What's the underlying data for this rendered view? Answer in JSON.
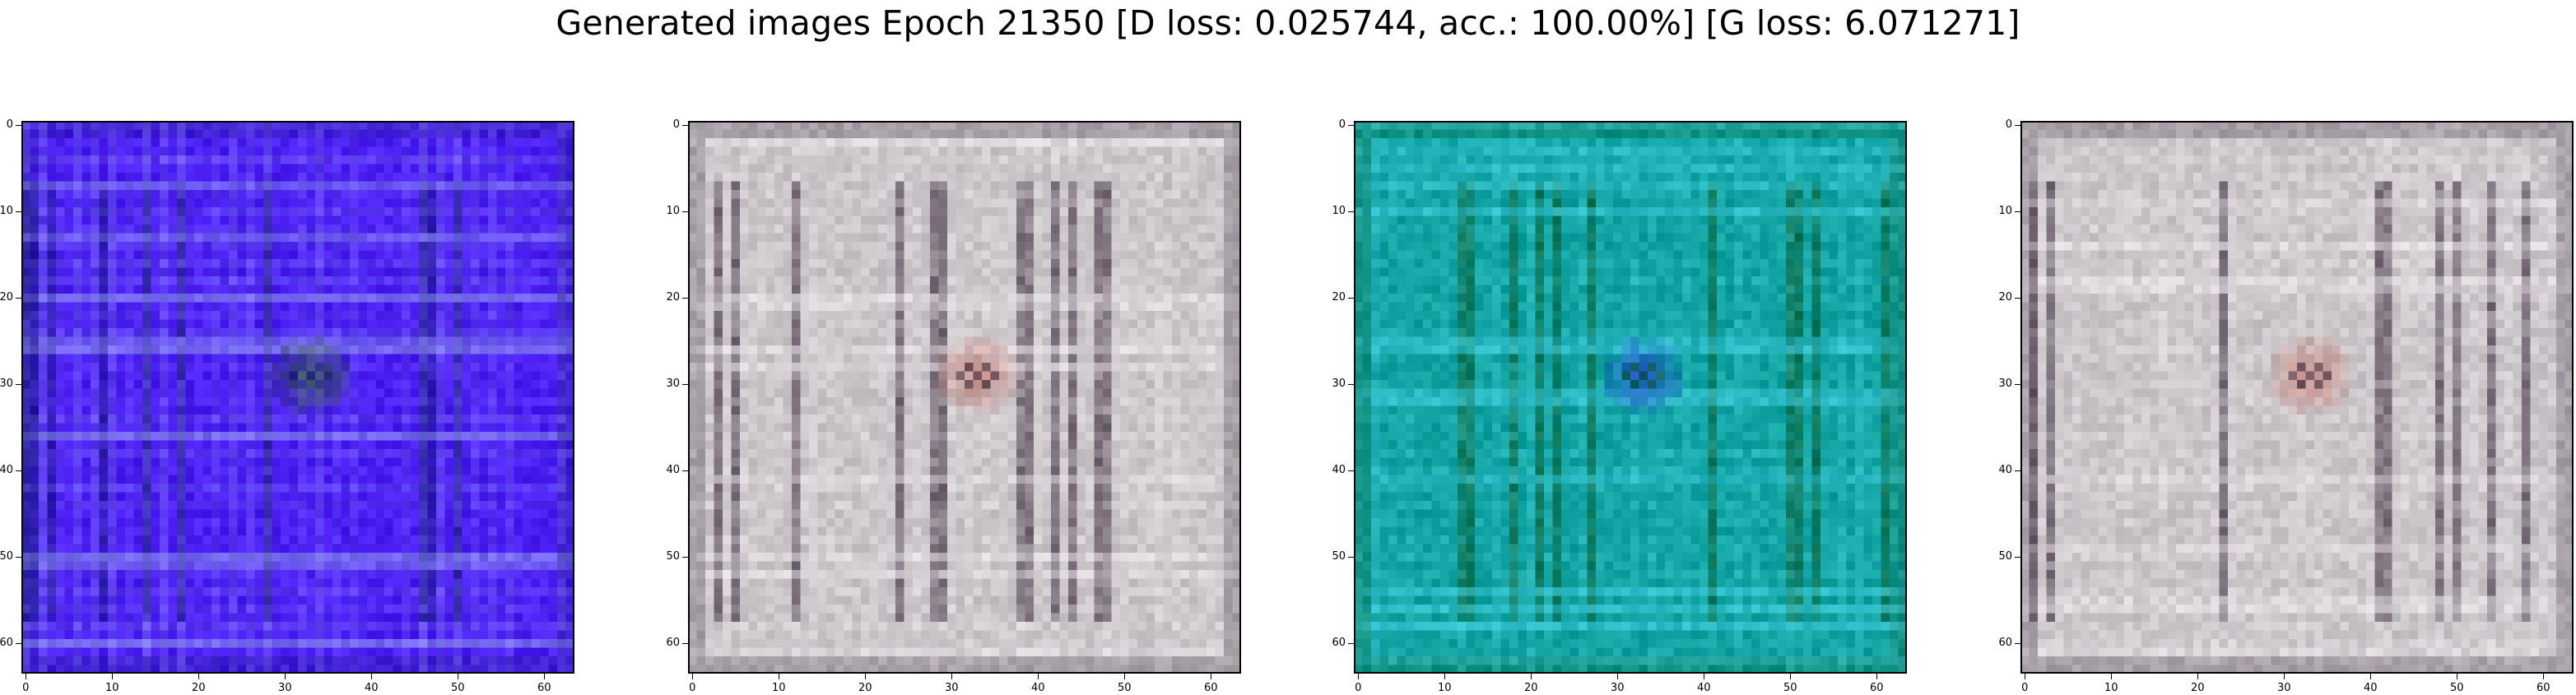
{
  "figure": {
    "title": "Generated images Epoch 21350 [D loss: 0.025744, acc.: 100.00%] [G loss: 6.071271]"
  },
  "axes_ticks": {
    "x": [
      "0",
      "10",
      "20",
      "30",
      "40",
      "50",
      "60"
    ],
    "y": [
      "0",
      "10",
      "20",
      "30",
      "40",
      "50",
      "60"
    ]
  },
  "images": [
    {
      "description_palette": "blue-violet",
      "base_color": "#4a1df2",
      "accent_color": "#8a8cf0",
      "dark_color": "#1a1a80",
      "hot_color": "#2c6a10"
    },
    {
      "description_palette": "pale-gray-pink",
      "base_color": "#c9c4c8",
      "accent_color": "#e6e0e4",
      "dark_color": "#3a2a3c",
      "hot_color": "#c46a5a"
    },
    {
      "description_palette": "teal-green",
      "base_color": "#0fa2a0",
      "accent_color": "#3cc9d8",
      "dark_color": "#0b5a2a",
      "hot_color": "#2a2cd8"
    },
    {
      "description_palette": "pale-gray-pink",
      "base_color": "#c9c4c8",
      "accent_color": "#e6e0e4",
      "dark_color": "#3a2a3c",
      "hot_color": "#c46a5a"
    }
  ]
}
